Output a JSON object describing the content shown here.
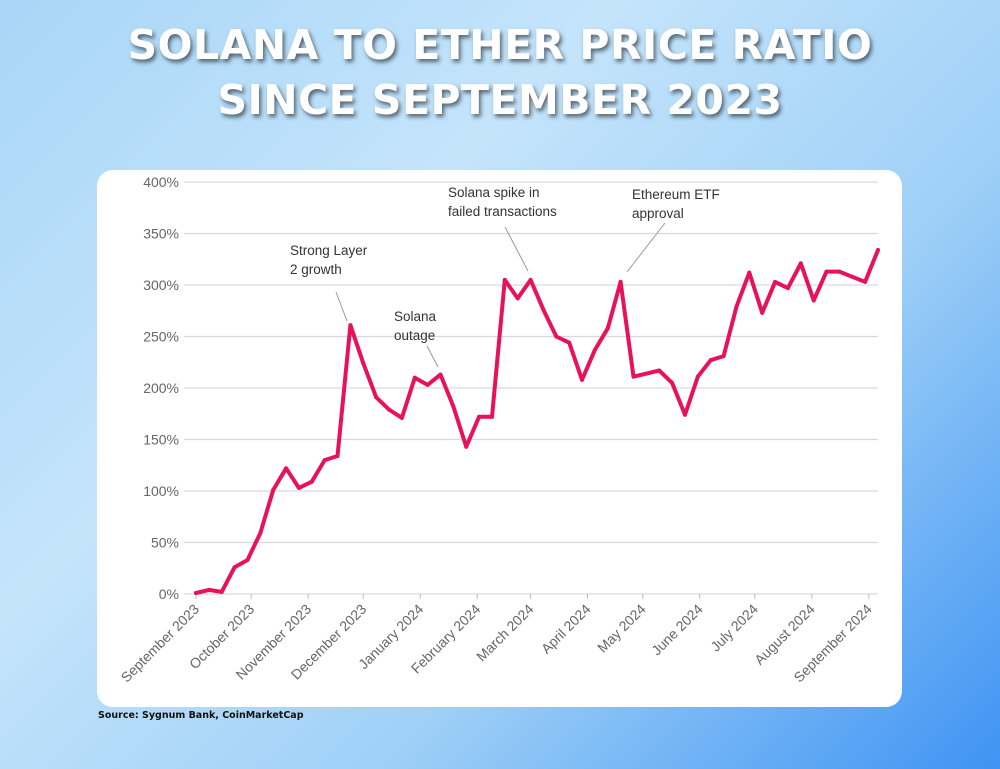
{
  "title": {
    "line1": "SOLANA TO ETHER PRICE RATIO",
    "line2": "SINCE SEPTEMBER 2023"
  },
  "source": "Source: Sygnum Bank, CoinMarketCap",
  "chart_data": {
    "type": "line",
    "title": "SOLANA TO ETHER PRICE RATIO SINCE SEPTEMBER 2023",
    "xlabel": "",
    "ylabel": "",
    "ylim": [
      0,
      400
    ],
    "yticks": [
      "0%",
      "50%",
      "100%",
      "150%",
      "200%",
      "250%",
      "300%",
      "350%",
      "400%"
    ],
    "ytick_values": [
      0,
      50,
      100,
      150,
      200,
      250,
      300,
      350,
      400
    ],
    "xlim": [
      "2023-09-01",
      "2024-09-06"
    ],
    "xticks": [
      "September 2023",
      "October 2023",
      "November 2023",
      "December 2023",
      "January 2024",
      "February 2024",
      "March 2024",
      "April 2024",
      "May 2024",
      "June 2024",
      "July 2024",
      "August 2024",
      "September 2024"
    ],
    "xtick_dates": [
      "2023-09-01",
      "2023-10-01",
      "2023-11-01",
      "2023-12-01",
      "2024-01-01",
      "2024-02-01",
      "2024-03-01",
      "2024-04-01",
      "2024-05-01",
      "2024-06-01",
      "2024-07-01",
      "2024-08-01",
      "2024-09-01"
    ],
    "grid": "horizontal",
    "line_color": "#e8125c",
    "x": [
      "2023-09-01",
      "2023-09-08",
      "2023-09-15",
      "2023-09-22",
      "2023-09-29",
      "2023-10-06",
      "2023-10-13",
      "2023-10-20",
      "2023-10-27",
      "2023-11-03",
      "2023-11-10",
      "2023-11-17",
      "2023-11-24",
      "2023-12-01",
      "2023-12-08",
      "2023-12-15",
      "2023-12-22",
      "2023-12-29",
      "2024-01-05",
      "2024-01-12",
      "2024-01-19",
      "2024-01-26",
      "2024-02-02",
      "2024-02-09",
      "2024-02-16",
      "2024-02-23",
      "2024-03-01",
      "2024-03-08",
      "2024-03-15",
      "2024-03-22",
      "2024-03-29",
      "2024-04-05",
      "2024-04-12",
      "2024-04-19",
      "2024-04-26",
      "2024-05-03",
      "2024-05-10",
      "2024-05-17",
      "2024-05-24",
      "2024-05-31",
      "2024-06-07",
      "2024-06-14",
      "2024-06-21",
      "2024-06-28",
      "2024-07-05",
      "2024-07-12",
      "2024-07-19",
      "2024-07-26",
      "2024-08-02",
      "2024-08-09",
      "2024-08-16",
      "2024-08-23",
      "2024-08-30",
      "2024-09-06"
    ],
    "values": [
      1,
      4,
      2,
      26,
      33,
      59,
      101,
      122,
      103,
      109,
      130,
      134,
      261,
      224,
      191,
      179,
      171,
      210,
      203,
      213,
      182,
      143,
      172,
      172,
      305,
      287,
      305,
      276,
      250,
      244,
      208,
      237,
      258,
      303,
      211,
      214,
      217,
      205,
      174,
      211,
      227,
      231,
      279,
      312,
      273,
      303,
      297,
      321,
      285,
      313,
      313,
      308,
      303,
      334
    ],
    "annotations": [
      {
        "text": [
          "Strong Layer",
          "2 growth"
        ],
        "date": "2023-11-24"
      },
      {
        "text": [
          "Solana",
          "outage"
        ],
        "date": "2024-01-05"
      },
      {
        "text": [
          "Solana spike in",
          "failed transactions"
        ],
        "date": "2024-03-01"
      },
      {
        "text": [
          "Ethereum ETF",
          "approval"
        ],
        "date": "2024-04-19"
      }
    ]
  }
}
